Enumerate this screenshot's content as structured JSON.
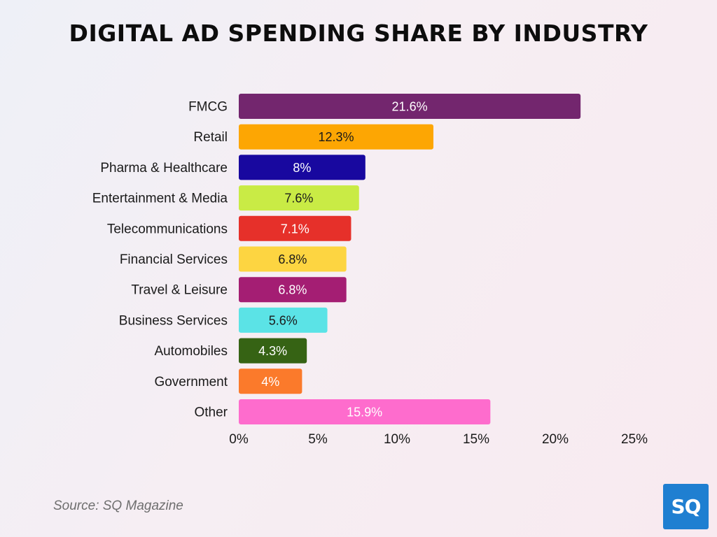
{
  "title": "DIGITAL AD SPENDING SHARE BY INDUSTRY",
  "source": "Source: SQ Magazine",
  "logo_text": "SQ",
  "chart_data": {
    "type": "bar",
    "orientation": "horizontal",
    "title": "DIGITAL AD SPENDING SHARE BY INDUSTRY",
    "categories": [
      "FMCG",
      "Retail",
      "Pharma & Healthcare",
      "Entertainment & Media",
      "Telecommunications",
      "Financial Services",
      "Travel & Leisure",
      "Business Services",
      "Automobiles",
      "Government",
      "Other"
    ],
    "values": [
      21.6,
      12.3,
      8,
      7.6,
      7.1,
      6.8,
      6.8,
      5.6,
      4.3,
      4,
      15.9
    ],
    "value_labels": [
      "21.6%",
      "12.3%",
      "8%",
      "7.6%",
      "7.1%",
      "6.8%",
      "6.8%",
      "5.6%",
      "4.3%",
      "4%",
      "15.9%"
    ],
    "colors": [
      "#73266e",
      "#fda603",
      "#18089f",
      "#c9eb45",
      "#e6302a",
      "#fdd541",
      "#a41e73",
      "#5be3e6",
      "#366314",
      "#fb7a2b",
      "#fe6ccd"
    ],
    "label_colors": [
      "#ffffff",
      "#1a1a1a",
      "#ffffff",
      "#1a1a1a",
      "#ffffff",
      "#1a1a1a",
      "#ffffff",
      "#1a1a1a",
      "#ffffff",
      "#ffffff",
      "#ffffff"
    ],
    "xlim": [
      0,
      25
    ],
    "xticks": [
      0,
      5,
      10,
      15,
      20,
      25
    ],
    "xtick_labels": [
      "0%",
      "5%",
      "10%",
      "15%",
      "20%",
      "25%"
    ],
    "grid": false,
    "legend": "none",
    "xlabel": "",
    "ylabel": ""
  }
}
